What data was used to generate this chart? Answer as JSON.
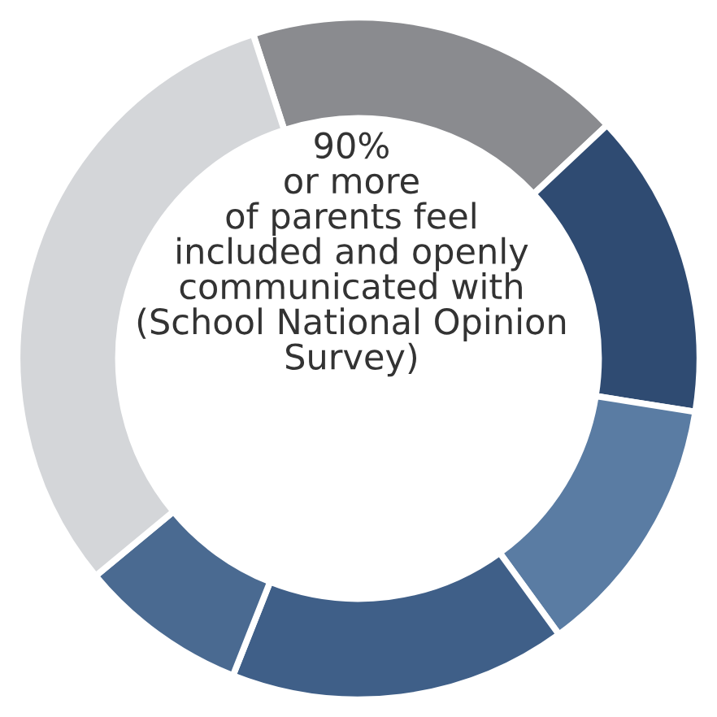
{
  "chart_data": {
    "type": "donut",
    "categories": [
      null,
      null,
      null,
      null,
      null,
      null
    ],
    "values": [
      18,
      14.5,
      12.5,
      16,
      8,
      31
    ],
    "colors": [
      "#8a8b8f",
      "#2f4b72",
      "#5a7ca3",
      "#3f5f88",
      "#4a6a91",
      "#d4d6d9"
    ],
    "annotations": [
      "90%\nor more\nof parents feel\nincluded and openly\ncommunicated with\n(School National Opinion\nSurvey)"
    ]
  }
}
